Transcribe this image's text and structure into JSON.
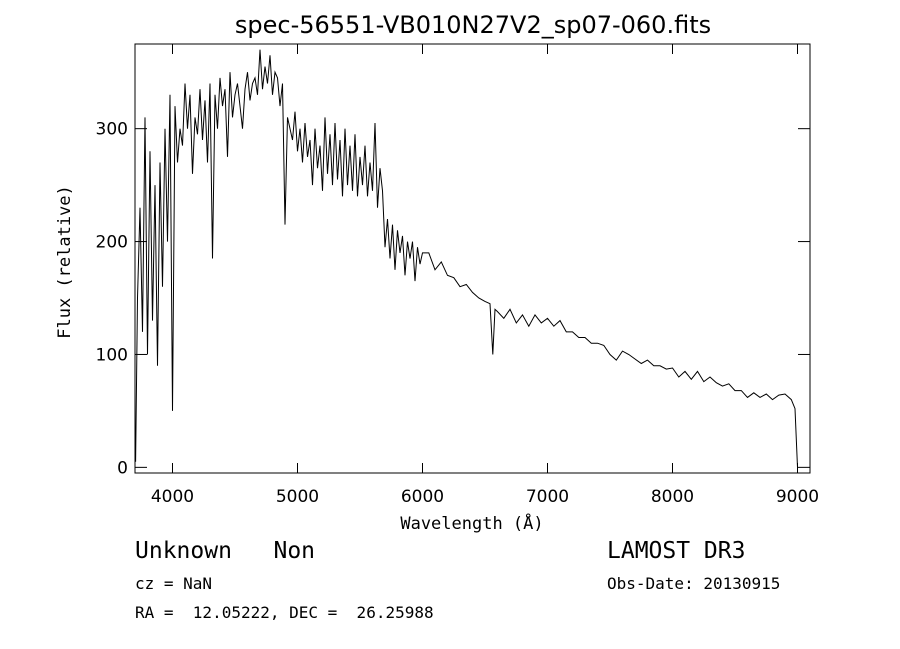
{
  "chart_data": {
    "type": "line",
    "title": "spec-56551-VB010N27V2_sp07-060.fits",
    "xlabel": "Wavelength (Å)",
    "ylabel": "Flux (relative)",
    "xlim": [
      3700,
      9100
    ],
    "ylim": [
      -5,
      375
    ],
    "xticks": [
      4000,
      5000,
      6000,
      7000,
      8000,
      9000
    ],
    "yticks": [
      0,
      100,
      200,
      300
    ],
    "xtick_labels": [
      "4000",
      "5000",
      "6000",
      "7000",
      "8000",
      "9000"
    ],
    "ytick_labels": [
      "0",
      "100",
      "200",
      "300"
    ],
    "grid": false,
    "color": "#000000",
    "series": [
      {
        "x": [
          3705,
          3720,
          3740,
          3760,
          3780,
          3800,
          3820,
          3840,
          3860,
          3880,
          3900,
          3920,
          3940,
          3960,
          3980,
          4000,
          4020,
          4040,
          4060,
          4080,
          4100,
          4120,
          4140,
          4160,
          4180,
          4200,
          4220,
          4240,
          4260,
          4280,
          4300,
          4320,
          4340,
          4360,
          4380,
          4400,
          4420,
          4440,
          4460,
          4480,
          4500,
          4520,
          4540,
          4560,
          4580,
          4600,
          4620,
          4640,
          4660,
          4680,
          4700,
          4720,
          4740,
          4760,
          4780,
          4800,
          4820,
          4840,
          4860,
          4880,
          4900,
          4920,
          4940,
          4960,
          4980,
          5000,
          5020,
          5040,
          5060,
          5080,
          5100,
          5120,
          5140,
          5160,
          5180,
          5200,
          5220,
          5240,
          5260,
          5280,
          5300,
          5320,
          5340,
          5360,
          5380,
          5400,
          5420,
          5440,
          5460,
          5480,
          5500,
          5520,
          5540,
          5560,
          5580,
          5600,
          5620,
          5640,
          5660,
          5680,
          5700,
          5720,
          5740,
          5760,
          5780,
          5800,
          5820,
          5840,
          5860,
          5880,
          5900,
          5920,
          5940,
          5960,
          5980,
          6000,
          6050,
          6100,
          6150,
          6200,
          6250,
          6300,
          6350,
          6400,
          6450,
          6500,
          6540,
          6562,
          6580,
          6600,
          6650,
          6700,
          6750,
          6800,
          6850,
          6900,
          6950,
          7000,
          7050,
          7100,
          7150,
          7200,
          7250,
          7300,
          7350,
          7400,
          7450,
          7500,
          7550,
          7600,
          7650,
          7700,
          7750,
          7800,
          7850,
          7900,
          7950,
          8000,
          8050,
          8100,
          8150,
          8200,
          8250,
          8300,
          8350,
          8400,
          8450,
          8500,
          8550,
          8600,
          8650,
          8700,
          8750,
          8800,
          8850,
          8900,
          8950,
          8980,
          9000
        ],
        "y": [
          5,
          150,
          230,
          120,
          310,
          100,
          280,
          130,
          250,
          90,
          270,
          160,
          300,
          200,
          330,
          50,
          320,
          270,
          300,
          285,
          340,
          300,
          330,
          260,
          310,
          295,
          335,
          290,
          325,
          270,
          340,
          185,
          330,
          300,
          345,
          320,
          335,
          275,
          350,
          310,
          330,
          340,
          320,
          300,
          335,
          350,
          325,
          340,
          345,
          330,
          370,
          335,
          355,
          340,
          365,
          330,
          350,
          345,
          320,
          340,
          215,
          310,
          300,
          290,
          315,
          280,
          300,
          270,
          305,
          275,
          290,
          250,
          300,
          265,
          285,
          245,
          310,
          260,
          295,
          250,
          305,
          255,
          290,
          240,
          300,
          250,
          285,
          245,
          295,
          240,
          275,
          250,
          285,
          240,
          270,
          245,
          305,
          230,
          265,
          245,
          195,
          220,
          185,
          215,
          175,
          210,
          190,
          205,
          170,
          200,
          185,
          200,
          165,
          195,
          180,
          190,
          190,
          175,
          182,
          170,
          168,
          160,
          162,
          155,
          150,
          147,
          145,
          100,
          140,
          138,
          132,
          140,
          128,
          135,
          125,
          135,
          128,
          132,
          125,
          130,
          120,
          120,
          115,
          115,
          110,
          110,
          108,
          100,
          95,
          103,
          100,
          96,
          92,
          95,
          90,
          90,
          87,
          88,
          80,
          85,
          78,
          85,
          76,
          80,
          75,
          72,
          74,
          68,
          68,
          62,
          66,
          62,
          65,
          60,
          64,
          65,
          60,
          52,
          0
        ]
      }
    ]
  },
  "info": {
    "class_line": "Unknown   Non",
    "cz_line": "cz = NaN",
    "radec_line": "RA =  12.05222, DEC =  26.25988",
    "survey": "LAMOST DR3",
    "obs_date": "Obs-Date: 20130915"
  }
}
